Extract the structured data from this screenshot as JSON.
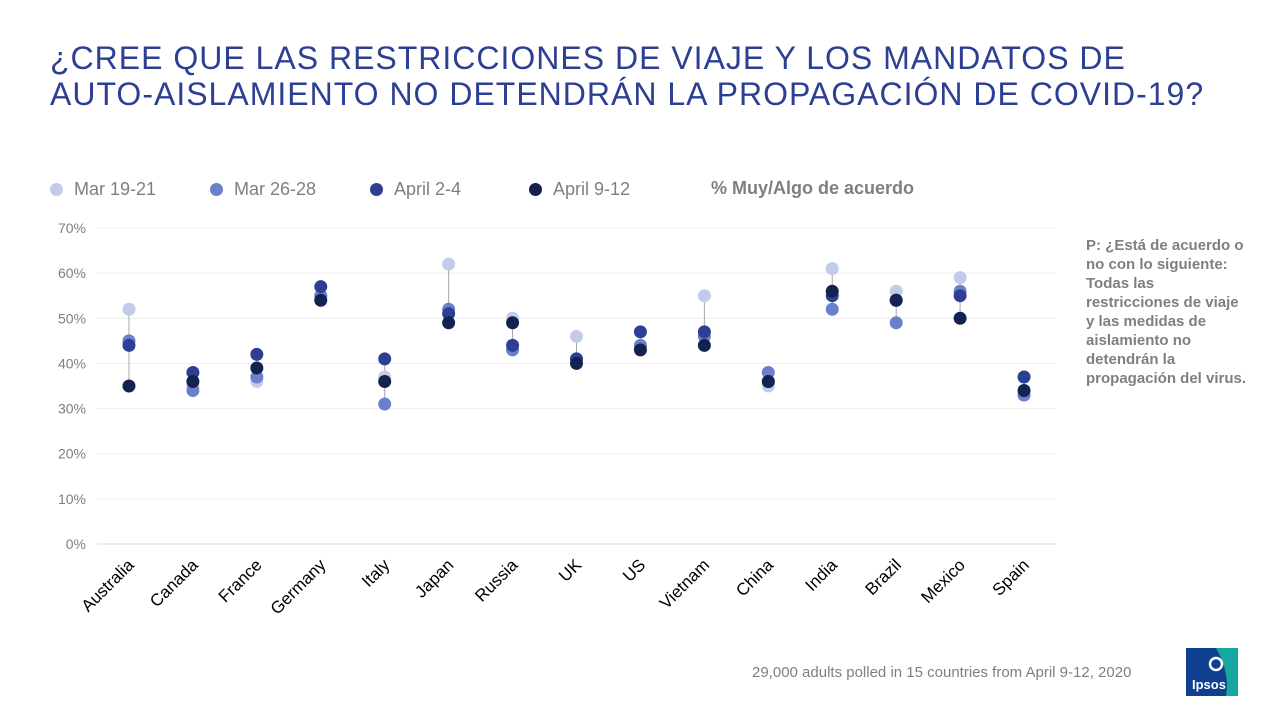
{
  "title": {
    "line1": "¿CREE QUE LAS RESTRICCIONES DE VIAJE Y LOS MANDATOS DE",
    "line2": "AUTO-AISLAMIENTO NO DETENDRÁN LA PROPAGACIÓN DE COVID-19?"
  },
  "legend": {
    "items": [
      {
        "label": "Mar 19-21",
        "color": "#c3cbea"
      },
      {
        "label": "Mar 26-28",
        "color": "#6b80cc"
      },
      {
        "label": "April 2-4",
        "color": "#2d3f93"
      },
      {
        "label": "April 9-12",
        "color": "#15224f"
      }
    ],
    "note": "% Muy/Algo de acuerdo"
  },
  "question": "P: ¿Está de acuerdo o no con lo siguiente: Todas las restricciones de viaje y las medidas de aislamiento no detendrán la propagación del virus.",
  "source": "29,000 adults polled in 15 countries from April 9-12, 2020",
  "logo": {
    "text": "Ipsos",
    "color": "#0f3f8f",
    "accent": "#17a7a0"
  },
  "chart_data": {
    "type": "scatter",
    "title": "¿Cree que las restricciones de viaje y los mandatos de auto-aislamiento no detendrán la propagación de COVID-19?",
    "xlabel": "",
    "ylabel": "% Muy/Algo de acuerdo",
    "ylim": [
      0,
      70
    ],
    "yticks": [
      "0%",
      "10%",
      "20%",
      "30%",
      "40%",
      "50%",
      "60%",
      "70%"
    ],
    "categories": [
      "Australia",
      "Canada",
      "France",
      "Germany",
      "Italy",
      "Japan",
      "Russia",
      "UK",
      "US",
      "Vietnam",
      "China",
      "India",
      "Brazil",
      "Mexico",
      "Spain"
    ],
    "series": [
      {
        "name": "Mar 19-21",
        "color": "#c3cbea",
        "values": [
          52,
          35,
          36,
          55,
          37,
          62,
          50,
          46,
          44,
          55,
          35,
          61,
          56,
          59,
          33
        ]
      },
      {
        "name": "Mar 26-28",
        "color": "#6b80cc",
        "values": [
          45,
          34,
          37,
          55,
          31,
          52,
          43,
          41,
          44,
          46,
          38,
          52,
          49,
          56,
          33
        ]
      },
      {
        "name": "April 2-4",
        "color": "#2d3f93",
        "values": [
          44,
          38,
          42,
          57,
          41,
          51,
          44,
          41,
          47,
          47,
          36,
          55,
          54,
          55,
          37
        ]
      },
      {
        "name": "April 9-12",
        "color": "#15224f",
        "values": [
          35,
          36,
          39,
          54,
          36,
          49,
          49,
          40,
          43,
          44,
          36,
          56,
          54,
          50,
          34
        ]
      }
    ]
  }
}
